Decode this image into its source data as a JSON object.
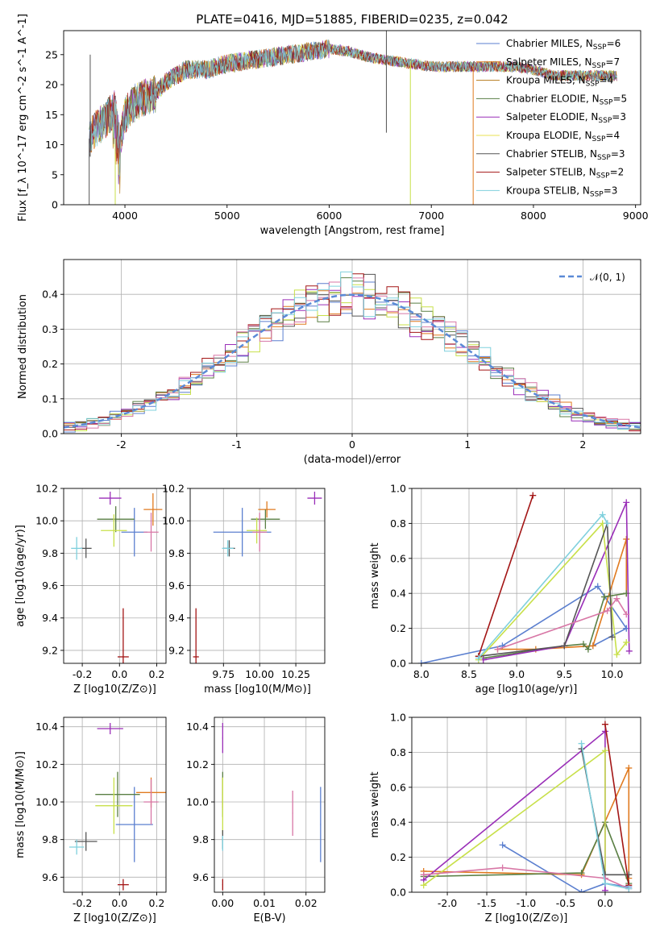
{
  "figure": {
    "title": "PLATE=0416, MJD=51885, FIBERID=0235, z=0.042"
  },
  "colors": [
    "#5b7fcf",
    "#e07a1f",
    "#5a7f44",
    "#9a2fb8",
    "#c8e04a",
    "#555555",
    "#a31515",
    "#d877a6",
    "#7fd0dd"
  ],
  "chart_data": [
    {
      "id": "spectrum",
      "type": "line",
      "xlabel": "wavelength [Angstrom, rest frame]",
      "ylabel": "Flux [f_λ 10^-17 erg cm^-2 s^-1 A^-1]",
      "xlim": [
        3400,
        9050
      ],
      "ylim": [
        0,
        29
      ],
      "xticks": [
        4000,
        5000,
        6000,
        7000,
        8000,
        9000
      ],
      "yticks": [
        0,
        5,
        10,
        15,
        20,
        25
      ],
      "grid": false,
      "legend_position": "top-right",
      "spectrum_knots": {
        "wavelength": [
          3650,
          3700,
          3800,
          3900,
          3950,
          4000,
          4100,
          4200,
          4300,
          4400,
          4500,
          4600,
          4700,
          4800,
          4900,
          5000,
          5200,
          5400,
          5600,
          5800,
          6000,
          6200,
          6400,
          6600,
          6800,
          7000,
          7200,
          7400,
          7600,
          7800,
          8000,
          8200,
          8400,
          8600,
          8800
        ],
        "flux": [
          11,
          12.5,
          14,
          16,
          10,
          15,
          17,
          18,
          18.5,
          20.5,
          21.5,
          22.5,
          22.5,
          22.5,
          23,
          23.5,
          24,
          24.5,
          25,
          25.5,
          26,
          25.5,
          24.5,
          24,
          23.5,
          23,
          23,
          23,
          23,
          23,
          22.5,
          21.5,
          21.5,
          21.5,
          21.5
        ]
      },
      "series": [
        {
          "name": "Chabrier MILES, N_SSP=6",
          "name_main": "Chabrier MILES, N",
          "sub": "SSP",
          "suffix": "=6",
          "color": "#5b7fcf"
        },
        {
          "name": "Salpeter MILES, N_SSP=7",
          "name_main": "Salpeter MILES, N",
          "sub": "SSP",
          "suffix": "=7",
          "color": "#e07a1f"
        },
        {
          "name": "Kroupa MILES, N_SSP=4",
          "name_main": "Kroupa MILES, N",
          "sub": "SSP",
          "suffix": "=4",
          "color": "#b5791b"
        },
        {
          "name": "Chabrier ELODIE, N_SSP=5",
          "name_main": "Chabrier ELODIE, N",
          "sub": "SSP",
          "suffix": "=5",
          "color": "#5a7f44"
        },
        {
          "name": "Salpeter ELODIE, N_SSP=3",
          "name_main": "Salpeter ELODIE, N",
          "sub": "SSP",
          "suffix": "=3",
          "color": "#9a2fb8"
        },
        {
          "name": "Kroupa ELODIE, N_SSP=4",
          "name_main": "Kroupa ELODIE, N",
          "sub": "SSP",
          "suffix": "=4",
          "color": "#e8e050"
        },
        {
          "name": "Chabrier STELIB, N_SSP=3",
          "name_main": "Chabrier STELIB, N",
          "sub": "SSP",
          "suffix": "=3",
          "color": "#555555"
        },
        {
          "name": "Salpeter STELIB, N_SSP=2",
          "name_main": "Salpeter STELIB, N",
          "sub": "SSP",
          "suffix": "=2",
          "color": "#a31515"
        },
        {
          "name": "Kroupa STELIB, N_SSP=3",
          "name_main": "Kroupa STELIB, N",
          "sub": "SSP",
          "suffix": "=3",
          "color": "#7fd0dd"
        }
      ]
    },
    {
      "id": "residual-hist",
      "type": "bar",
      "xlabel": "(data-model)/error",
      "ylabel": "Normed distribution",
      "xlim": [
        -2.5,
        2.5
      ],
      "ylim": [
        0,
        0.5
      ],
      "xticks": [
        -2,
        -1,
        0,
        1,
        2
      ],
      "yticks": [
        0.0,
        0.1,
        0.2,
        0.3,
        0.4
      ],
      "grid": true,
      "legend_position": "top-right",
      "reference": {
        "name": "𝒩(0, 1)",
        "color": "#5b8ad6"
      },
      "bin_width": 0.1
    },
    {
      "id": "age-vs-z",
      "type": "scatter",
      "xlabel": "Z [log10(Z/Z⊙)]",
      "ylabel": "age [log10(age/yr)]",
      "xlim": [
        -0.3,
        0.25
      ],
      "ylim": [
        9.12,
        10.2
      ],
      "xticks": [
        -0.2,
        0.0,
        0.2
      ],
      "yticks": [
        9.2,
        9.4,
        9.6,
        9.8,
        10.0,
        10.2
      ],
      "grid": true,
      "points": [
        {
          "x": 0.08,
          "y": 9.93,
          "xerr": 0.07,
          "yerr": 0.15,
          "color": "#5b7fcf"
        },
        {
          "x": 0.18,
          "y": 10.07,
          "xerr": 0.05,
          "yerr": 0.1,
          "color": "#e07a1f"
        },
        {
          "x": -0.02,
          "y": 10.01,
          "xerr": 0.1,
          "yerr": 0.08,
          "color": "#5a7f44"
        },
        {
          "x": -0.05,
          "y": 10.14,
          "xerr": 0.06,
          "yerr": 0.04,
          "color": "#9a2fb8"
        },
        {
          "x": -0.03,
          "y": 9.94,
          "xerr": 0.07,
          "yerr": 0.1,
          "color": "#c8e04a"
        },
        {
          "x": -0.18,
          "y": 9.83,
          "xerr": 0.03,
          "yerr": 0.06,
          "color": "#555555"
        },
        {
          "x": 0.02,
          "y": 9.16,
          "xerr": 0.03,
          "yerr": 0.3,
          "color": "#a31515"
        },
        {
          "x": 0.17,
          "y": 9.93,
          "xerr": 0.04,
          "yerr": 0.12,
          "color": "#d877a6"
        },
        {
          "x": -0.23,
          "y": 9.83,
          "xerr": 0.03,
          "yerr": 0.07,
          "color": "#7fd0dd"
        }
      ]
    },
    {
      "id": "age-vs-mass",
      "type": "scatter",
      "xlabel": "mass [log10(M/M⊙)]",
      "ylabel": "",
      "xlim": [
        9.52,
        10.45
      ],
      "ylim": [
        9.12,
        10.2
      ],
      "xticks": [
        9.75,
        10.0,
        10.25
      ],
      "yticks": [
        9.2,
        9.4,
        9.6,
        9.8,
        10.0,
        10.2
      ],
      "grid": true,
      "points": [
        {
          "x": 9.88,
          "y": 9.93,
          "xerr": 0.2,
          "yerr": 0.15,
          "color": "#5b7fcf"
        },
        {
          "x": 10.05,
          "y": 10.07,
          "xerr": 0.06,
          "yerr": 0.05,
          "color": "#e07a1f"
        },
        {
          "x": 10.04,
          "y": 10.01,
          "xerr": 0.1,
          "yerr": 0.06,
          "color": "#5a7f44"
        },
        {
          "x": 10.38,
          "y": 10.14,
          "xerr": 0.05,
          "yerr": 0.04,
          "color": "#9a2fb8"
        },
        {
          "x": 9.98,
          "y": 9.94,
          "xerr": 0.07,
          "yerr": 0.08,
          "color": "#c8e04a"
        },
        {
          "x": 9.79,
          "y": 9.83,
          "xerr": 0.04,
          "yerr": 0.05,
          "color": "#555555"
        },
        {
          "x": 9.56,
          "y": 9.16,
          "xerr": 0.02,
          "yerr": 0.3,
          "color": "#a31515"
        },
        {
          "x": 10.0,
          "y": 9.93,
          "xerr": 0.05,
          "yerr": 0.12,
          "color": "#d877a6"
        },
        {
          "x": 9.78,
          "y": 9.83,
          "xerr": 0.04,
          "yerr": 0.05,
          "color": "#7fd0dd"
        }
      ]
    },
    {
      "id": "massweight-vs-age",
      "type": "line",
      "xlabel": "age [log10(age/yr)]",
      "ylabel": "mass weight",
      "xlim": [
        7.9,
        10.3
      ],
      "ylim": [
        0,
        1.0
      ],
      "xticks": [
        8.0,
        8.5,
        9.0,
        9.5,
        10.0
      ],
      "yticks": [
        0.0,
        0.2,
        0.4,
        0.6,
        0.8,
        1.0
      ],
      "grid": true,
      "series": [
        {
          "color": "#5b7fcf",
          "x": [
            8.0,
            8.85,
            9.85,
            10.15,
            10.15,
            9.8
          ],
          "y": [
            0.0,
            0.1,
            0.44,
            0.2,
            0.2,
            0.1
          ]
        },
        {
          "color": "#e07a1f",
          "x": [
            8.8,
            9.2,
            9.8,
            10.15,
            10.15
          ],
          "y": [
            0.08,
            0.08,
            0.1,
            0.71,
            0.4
          ]
        },
        {
          "color": "#5a7f44",
          "x": [
            8.65,
            9.5,
            9.7,
            9.75,
            9.92,
            10.15
          ],
          "y": [
            0.03,
            0.1,
            0.11,
            0.08,
            0.38,
            0.4
          ]
        },
        {
          "color": "#9a2fb8",
          "x": [
            8.65,
            9.5,
            10.15,
            10.18
          ],
          "y": [
            0.02,
            0.1,
            0.92,
            0.07
          ]
        },
        {
          "color": "#c8e04a",
          "x": [
            8.6,
            9.9,
            10.05,
            10.15
          ],
          "y": [
            0.02,
            0.8,
            0.05,
            0.12
          ]
        },
        {
          "color": "#555555",
          "x": [
            8.6,
            9.5,
            9.95,
            10.0
          ],
          "y": [
            0.04,
            0.1,
            0.8,
            0.15
          ]
        },
        {
          "color": "#a31515",
          "x": [
            8.6,
            9.17
          ],
          "y": [
            0.04,
            0.96
          ]
        },
        {
          "color": "#d877a6",
          "x": [
            8.8,
            9.95,
            10.05,
            10.15
          ],
          "y": [
            0.08,
            0.3,
            0.37,
            0.28
          ]
        },
        {
          "color": "#7fd0dd",
          "x": [
            8.6,
            9.9,
            9.95
          ],
          "y": [
            0.03,
            0.85,
            0.8
          ]
        }
      ]
    },
    {
      "id": "mass-vs-z",
      "type": "scatter",
      "xlabel": "Z [log10(Z/Z⊙)]",
      "ylabel": "mass [log10(M/M⊙)]",
      "xlim": [
        -0.3,
        0.25
      ],
      "ylim": [
        9.52,
        10.45
      ],
      "xticks": [
        -0.2,
        0.0,
        0.2
      ],
      "yticks": [
        9.6,
        9.8,
        10.0,
        10.2,
        10.4
      ],
      "grid": true,
      "points": [
        {
          "x": 0.08,
          "y": 9.88,
          "xerr": 0.1,
          "yerr": 0.2,
          "color": "#5b7fcf"
        },
        {
          "x": 0.17,
          "y": 10.05,
          "xerr": 0.08,
          "yerr": 0.08,
          "color": "#e07a1f"
        },
        {
          "x": -0.01,
          "y": 10.04,
          "xerr": 0.12,
          "yerr": 0.12,
          "color": "#5a7f44"
        },
        {
          "x": -0.05,
          "y": 10.39,
          "xerr": 0.07,
          "yerr": 0.03,
          "color": "#9a2fb8"
        },
        {
          "x": -0.03,
          "y": 9.98,
          "xerr": 0.1,
          "yerr": 0.15,
          "color": "#c8e04a"
        },
        {
          "x": -0.18,
          "y": 9.79,
          "xerr": 0.06,
          "yerr": 0.05,
          "color": "#555555"
        },
        {
          "x": 0.02,
          "y": 9.56,
          "xerr": 0.03,
          "yerr": 0.03,
          "color": "#a31515"
        },
        {
          "x": 0.17,
          "y": 10.0,
          "xerr": 0.04,
          "yerr": 0.12,
          "color": "#d877a6"
        },
        {
          "x": -0.23,
          "y": 9.76,
          "xerr": 0.04,
          "yerr": 0.04,
          "color": "#7fd0dd"
        }
      ]
    },
    {
      "id": "mass-vs-ebv",
      "type": "scatter",
      "xlabel": "E(B-V)",
      "ylabel": "",
      "xlim": [
        -0.002,
        0.0245
      ],
      "ylim": [
        9.52,
        10.45
      ],
      "xticks": [
        0.0,
        0.01,
        0.02
      ],
      "yticks": [
        9.6,
        9.8,
        10.0,
        10.2,
        10.4
      ],
      "grid": true,
      "points": [
        {
          "x": 0.0235,
          "y": 9.88,
          "xerr": 0.0001,
          "yerr": 0.2,
          "color": "#5b7fcf"
        },
        {
          "x": 0.0,
          "y": 10.05,
          "xerr": 0.0001,
          "yerr": 0.08,
          "color": "#e07a1f"
        },
        {
          "x": 0.0,
          "y": 10.04,
          "xerr": 0.0001,
          "yerr": 0.12,
          "color": "#5a7f44"
        },
        {
          "x": 0.0,
          "y": 10.34,
          "xerr": 0.0001,
          "yerr": 0.08,
          "color": "#9a2fb8"
        },
        {
          "x": 0.0,
          "y": 9.98,
          "xerr": 0.0001,
          "yerr": 0.15,
          "color": "#c8e04a"
        },
        {
          "x": 0.0,
          "y": 9.8,
          "xerr": 0.0001,
          "yerr": 0.05,
          "color": "#555555"
        },
        {
          "x": 0.0,
          "y": 9.56,
          "xerr": 0.0001,
          "yerr": 0.03,
          "color": "#a31515"
        },
        {
          "x": 0.0168,
          "y": 9.94,
          "xerr": 0.0001,
          "yerr": 0.12,
          "color": "#d877a6"
        },
        {
          "x": 0.0,
          "y": 9.78,
          "xerr": 0.0001,
          "yerr": 0.04,
          "color": "#7fd0dd"
        }
      ]
    },
    {
      "id": "massweight-vs-z",
      "type": "line",
      "xlabel": "Z [log10(Z/Z⊙)]",
      "ylabel": "mass weight",
      "xlim": [
        -2.45,
        0.45
      ],
      "ylim": [
        0,
        1.0
      ],
      "xticks": [
        -2.0,
        -1.5,
        -1.0,
        -0.5,
        0.0
      ],
      "yticks": [
        0.0,
        0.2,
        0.4,
        0.6,
        0.8,
        1.0
      ],
      "grid": true,
      "series": [
        {
          "color": "#5b7fcf",
          "x": [
            -1.3,
            -0.3,
            0.0,
            0.3
          ],
          "y": [
            0.27,
            0.0,
            0.05,
            0.03
          ]
        },
        {
          "color": "#e07a1f",
          "x": [
            -2.3,
            -0.3,
            0.3,
            0.3
          ],
          "y": [
            0.12,
            0.1,
            0.71,
            0.08
          ]
        },
        {
          "color": "#5a7f44",
          "x": [
            -2.3,
            -0.3,
            0.0,
            0.3
          ],
          "y": [
            0.09,
            0.11,
            0.4,
            0.05
          ]
        },
        {
          "color": "#9a2fb8",
          "x": [
            -2.3,
            0.0,
            0.0
          ],
          "y": [
            0.07,
            0.92,
            0.01
          ]
        },
        {
          "color": "#c8e04a",
          "x": [
            -2.3,
            0.0,
            0.0
          ],
          "y": [
            0.04,
            0.81,
            0.1
          ]
        },
        {
          "color": "#555555",
          "x": [
            -0.3,
            0.0,
            0.3
          ],
          "y": [
            0.82,
            0.1,
            0.1
          ]
        },
        {
          "color": "#a31515",
          "x": [
            0.0,
            0.3
          ],
          "y": [
            0.96,
            0.04
          ]
        },
        {
          "color": "#d877a6",
          "x": [
            -2.3,
            -1.3,
            0.0,
            0.3
          ],
          "y": [
            0.1,
            0.14,
            0.08,
            0.02
          ]
        },
        {
          "color": "#7fd0dd",
          "x": [
            -0.3,
            0.0,
            0.3
          ],
          "y": [
            0.85,
            0.05,
            0.02
          ]
        }
      ]
    }
  ]
}
